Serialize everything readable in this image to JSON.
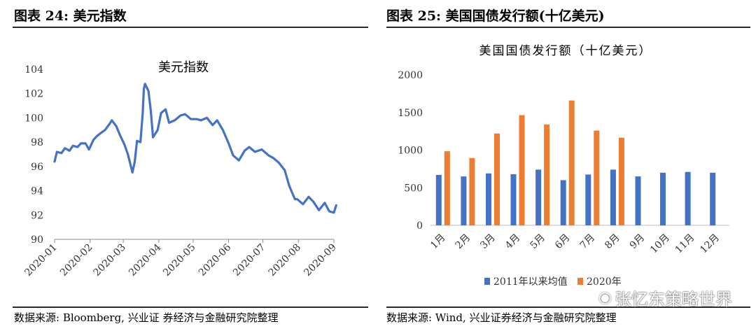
{
  "left": {
    "header": "图表 24:  美元指数",
    "source": "数据来源:  Bloomberg, 兴业证 券经济与金融研究院整理",
    "chart_data": {
      "type": "line",
      "title": "美元指数",
      "xlabel": "",
      "ylabel": "",
      "ylim": [
        90,
        104
      ],
      "yticks": [
        "90",
        "92",
        "94",
        "96",
        "98",
        "100",
        "102",
        "104"
      ],
      "xticks": [
        "2020-01",
        "2020-02",
        "2020-03",
        "2020-04",
        "2020-05",
        "2020-06",
        "2020-07",
        "2020-08",
        "2020-09"
      ],
      "grid": false,
      "color": "#4472C4",
      "series": [
        {
          "x": [
            "2020-01-01",
            "2020-01-03",
            "2020-01-07",
            "2020-01-10",
            "2020-01-14",
            "2020-01-17",
            "2020-01-21",
            "2020-01-24",
            "2020-01-28",
            "2020-01-31",
            "2020-02-04",
            "2020-02-07",
            "2020-02-11",
            "2020-02-14",
            "2020-02-18",
            "2020-02-20",
            "2020-02-24",
            "2020-02-27",
            "2020-03-02",
            "2020-03-05",
            "2020-03-09",
            "2020-03-11",
            "2020-03-13",
            "2020-03-16",
            "2020-03-18",
            "2020-03-19",
            "2020-03-20",
            "2020-03-23",
            "2020-03-25",
            "2020-03-27",
            "2020-03-31",
            "2020-04-03",
            "2020-04-07",
            "2020-04-10",
            "2020-04-15",
            "2020-04-20",
            "2020-04-24",
            "2020-04-29",
            "2020-05-04",
            "2020-05-08",
            "2020-05-13",
            "2020-05-18",
            "2020-05-22",
            "2020-05-27",
            "2020-06-01",
            "2020-06-05",
            "2020-06-10",
            "2020-06-15",
            "2020-06-19",
            "2020-06-24",
            "2020-06-30",
            "2020-07-06",
            "2020-07-10",
            "2020-07-15",
            "2020-07-20",
            "2020-07-24",
            "2020-07-29",
            "2020-07-31",
            "2020-08-05",
            "2020-08-10",
            "2020-08-14",
            "2020-08-19",
            "2020-08-24",
            "2020-08-28",
            "2020-09-01",
            "2020-09-03"
          ],
          "y": [
            96.4,
            97.2,
            97.1,
            97.5,
            97.3,
            97.7,
            97.6,
            97.9,
            97.9,
            97.4,
            98.2,
            98.5,
            98.8,
            99.0,
            99.5,
            99.8,
            99.3,
            98.6,
            97.8,
            97.0,
            95.5,
            96.4,
            98.1,
            98.0,
            100.4,
            102.4,
            102.8,
            102.2,
            100.6,
            98.4,
            99.0,
            100.4,
            100.7,
            99.6,
            99.8,
            100.2,
            100.3,
            99.9,
            99.9,
            99.8,
            100.0,
            99.4,
            99.8,
            99.0,
            97.9,
            96.9,
            96.5,
            97.3,
            97.6,
            97.2,
            97.4,
            96.9,
            96.7,
            96.3,
            95.7,
            94.4,
            93.3,
            93.3,
            92.9,
            93.5,
            93.1,
            92.4,
            93.0,
            92.3,
            92.2,
            92.8
          ]
        }
      ]
    }
  },
  "right": {
    "header": "图表 25:  美国国债发行额(十亿美元)",
    "source": "数据来源:  Wind, 兴业证券经济与金融研究院整理",
    "chart_data": {
      "type": "bar",
      "title": "美国国债发行额（十亿美元）",
      "xlabel": "",
      "ylabel": "",
      "ylim": [
        0,
        2000
      ],
      "yticks": [
        "0",
        "500",
        "1000",
        "1500",
        "2000"
      ],
      "categories": [
        "1月",
        "2月",
        "3月",
        "4月",
        "5月",
        "6月",
        "7月",
        "8月",
        "9月",
        "10月",
        "11月",
        "12月"
      ],
      "grid": false,
      "legend_position": "bottom",
      "series": [
        {
          "name": "2011年以来均值",
          "color": "#4472C4",
          "values": [
            670,
            650,
            690,
            680,
            740,
            600,
            675,
            740,
            650,
            700,
            710,
            700
          ]
        },
        {
          "name": "2020年",
          "color": "#ED7D31",
          "values": [
            985,
            895,
            1220,
            1465,
            1340,
            1660,
            1260,
            1165,
            null,
            null,
            null,
            null
          ]
        }
      ]
    }
  },
  "watermark": {
    "icon": "wechat-icon",
    "text": "张忆东策略世界"
  }
}
